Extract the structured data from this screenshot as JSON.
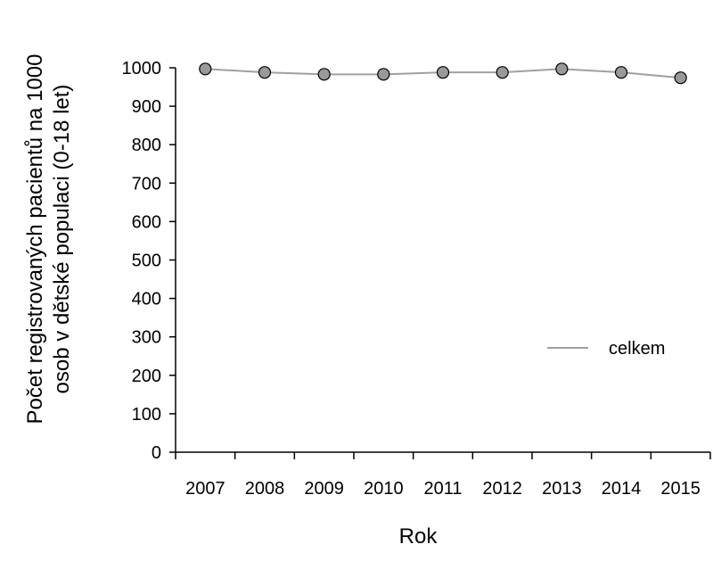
{
  "chart_data": {
    "type": "line",
    "title": "",
    "xlabel": "Rok",
    "ylabel": [
      "Počet registrovaných pacientů  na 1000",
      "osob v dětské populaci (0-18 let)"
    ],
    "categories": [
      "2007",
      "2008",
      "2009",
      "2010",
      "2011",
      "2012",
      "2013",
      "2014",
      "2015"
    ],
    "series": [
      {
        "name": "celkem",
        "values": [
          997,
          988,
          983,
          983,
          988,
          988,
          997,
          988,
          974
        ]
      }
    ],
    "ylim": [
      0,
      1000
    ],
    "yticks": [
      0,
      100,
      200,
      300,
      400,
      500,
      600,
      700,
      800,
      900,
      1000
    ],
    "grid": false,
    "legend": "right",
    "colors": {
      "line": "#a0a0a0",
      "marker_fill": "#999999",
      "marker_stroke": "#000000",
      "axis": "#000000"
    }
  }
}
